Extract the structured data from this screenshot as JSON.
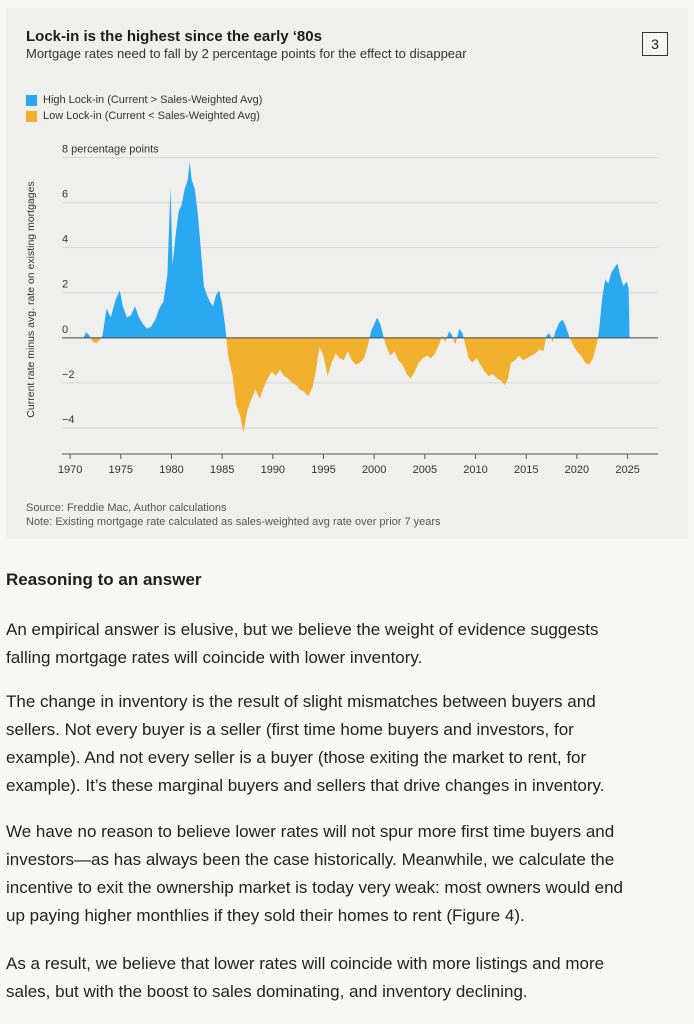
{
  "figure": {
    "title": "Lock-in is the highest since the early ‘80s",
    "subtitle": "Mortgage rates need to fall by 2 percentage points for the effect to disappear",
    "number": "3",
    "legend": [
      {
        "label": "High Lock-in (Current > Sales-Weighted Avg)",
        "color": "#2aa8f0"
      },
      {
        "label": "Low Lock-in (Current < Sales-Weighted Avg)",
        "color": "#f1b12e"
      }
    ],
    "source": "Source: Freddie Mac, Author calculations",
    "note": "Note: Existing mortgage rate calculated as sales-weighted avg rate over prior 7 years"
  },
  "chart_data": {
    "type": "area",
    "ylabel": "Current rate minus avg. rate on existing mortgages",
    "ylim": [
      -4.8,
      8.2
    ],
    "xlim": [
      1969.2,
      2028
    ],
    "y_ticks": [
      {
        "v": 8,
        "label": "8 percentage points"
      },
      {
        "v": 6,
        "label": "6"
      },
      {
        "v": 4,
        "label": "4"
      },
      {
        "v": 2,
        "label": "2"
      },
      {
        "v": 0,
        "label": "0"
      },
      {
        "v": -2,
        "label": "−2"
      },
      {
        "v": -4,
        "label": "−4"
      }
    ],
    "x_ticks": [
      1970,
      1975,
      1980,
      1985,
      1990,
      1995,
      2000,
      2005,
      2010,
      2015,
      2020,
      2025
    ],
    "colors": {
      "positive": "#2aa8f0",
      "negative": "#f1b12e"
    },
    "series": [
      {
        "values": [
          [
            1971.3,
            0
          ],
          [
            1971.6,
            0.25
          ],
          [
            1971.9,
            0.1
          ],
          [
            1972.2,
            -0.15
          ],
          [
            1972.6,
            -0.25
          ],
          [
            1972.9,
            -0.1
          ],
          [
            1973.2,
            0.1
          ],
          [
            1973.6,
            1.3
          ],
          [
            1974.0,
            0.9
          ],
          [
            1974.5,
            1.7
          ],
          [
            1974.9,
            2.1
          ],
          [
            1975.2,
            1.4
          ],
          [
            1975.6,
            0.9
          ],
          [
            1976.0,
            1.0
          ],
          [
            1976.4,
            1.4
          ],
          [
            1976.8,
            0.9
          ],
          [
            1977.2,
            0.6
          ],
          [
            1977.6,
            0.4
          ],
          [
            1978.0,
            0.5
          ],
          [
            1978.4,
            0.8
          ],
          [
            1978.8,
            1.3
          ],
          [
            1979.2,
            1.6
          ],
          [
            1979.6,
            2.8
          ],
          [
            1979.9,
            6.7
          ],
          [
            1980.1,
            3.2
          ],
          [
            1980.4,
            4.5
          ],
          [
            1980.7,
            5.6
          ],
          [
            1981.0,
            5.9
          ],
          [
            1981.3,
            6.6
          ],
          [
            1981.6,
            7.0
          ],
          [
            1981.8,
            7.8
          ],
          [
            1982.0,
            7.0
          ],
          [
            1982.3,
            6.6
          ],
          [
            1982.6,
            5.5
          ],
          [
            1982.9,
            3.9
          ],
          [
            1983.2,
            2.3
          ],
          [
            1983.5,
            1.9
          ],
          [
            1983.8,
            1.6
          ],
          [
            1984.1,
            1.4
          ],
          [
            1984.4,
            1.9
          ],
          [
            1984.7,
            2.1
          ],
          [
            1985.0,
            1.5
          ],
          [
            1985.3,
            0.5
          ],
          [
            1985.6,
            -0.8
          ],
          [
            1986.0,
            -1.6
          ],
          [
            1986.4,
            -3.0
          ],
          [
            1986.8,
            -3.5
          ],
          [
            1987.1,
            -4.2
          ],
          [
            1987.5,
            -3.2
          ],
          [
            1987.9,
            -2.7
          ],
          [
            1988.3,
            -2.3
          ],
          [
            1988.7,
            -2.7
          ],
          [
            1989.1,
            -2.2
          ],
          [
            1989.5,
            -1.8
          ],
          [
            1989.9,
            -1.5
          ],
          [
            1990.3,
            -1.7
          ],
          [
            1990.7,
            -1.4
          ],
          [
            1991.1,
            -1.7
          ],
          [
            1991.5,
            -1.8
          ],
          [
            1991.9,
            -2.0
          ],
          [
            1992.3,
            -2.1
          ],
          [
            1992.7,
            -2.3
          ],
          [
            1993.1,
            -2.4
          ],
          [
            1993.5,
            -2.6
          ],
          [
            1993.9,
            -2.2
          ],
          [
            1994.2,
            -1.6
          ],
          [
            1994.6,
            -0.4
          ],
          [
            1995.0,
            -0.8
          ],
          [
            1995.4,
            -1.7
          ],
          [
            1995.8,
            -1.1
          ],
          [
            1996.2,
            -0.7
          ],
          [
            1996.6,
            -0.9
          ],
          [
            1997.0,
            -1.0
          ],
          [
            1997.4,
            -0.6
          ],
          [
            1997.8,
            -1.0
          ],
          [
            1998.2,
            -1.2
          ],
          [
            1998.6,
            -1.1
          ],
          [
            1999.0,
            -0.9
          ],
          [
            1999.4,
            -0.3
          ],
          [
            1999.7,
            0.3
          ],
          [
            2000.0,
            0.6
          ],
          [
            2000.3,
            0.9
          ],
          [
            2000.6,
            0.6
          ],
          [
            2000.9,
            0.1
          ],
          [
            2001.2,
            -0.4
          ],
          [
            2001.6,
            -0.8
          ],
          [
            2002.0,
            -0.6
          ],
          [
            2002.4,
            -1.0
          ],
          [
            2002.8,
            -1.2
          ],
          [
            2003.2,
            -1.6
          ],
          [
            2003.6,
            -1.8
          ],
          [
            2004.0,
            -1.5
          ],
          [
            2004.4,
            -1.1
          ],
          [
            2004.8,
            -0.9
          ],
          [
            2005.2,
            -0.8
          ],
          [
            2005.6,
            -0.9
          ],
          [
            2006.0,
            -0.7
          ],
          [
            2006.4,
            -0.3
          ],
          [
            2006.7,
            0.1
          ],
          [
            2007.0,
            -0.2
          ],
          [
            2007.4,
            0.3
          ],
          [
            2007.7,
            0.1
          ],
          [
            2008.0,
            -0.3
          ],
          [
            2008.4,
            0.4
          ],
          [
            2008.7,
            0.2
          ],
          [
            2009.0,
            -0.3
          ],
          [
            2009.3,
            -0.9
          ],
          [
            2009.7,
            -1.1
          ],
          [
            2010.1,
            -0.9
          ],
          [
            2010.5,
            -1.2
          ],
          [
            2010.9,
            -1.5
          ],
          [
            2011.3,
            -1.7
          ],
          [
            2011.7,
            -1.6
          ],
          [
            2012.1,
            -1.8
          ],
          [
            2012.5,
            -1.9
          ],
          [
            2012.9,
            -2.1
          ],
          [
            2013.2,
            -1.8
          ],
          [
            2013.5,
            -1.1
          ],
          [
            2013.9,
            -1.0
          ],
          [
            2014.3,
            -0.8
          ],
          [
            2014.7,
            -1.0
          ],
          [
            2015.1,
            -0.9
          ],
          [
            2015.5,
            -0.8
          ],
          [
            2015.9,
            -0.7
          ],
          [
            2016.3,
            -0.5
          ],
          [
            2016.7,
            -0.6
          ],
          [
            2017.0,
            0.1
          ],
          [
            2017.3,
            0.2
          ],
          [
            2017.6,
            -0.2
          ],
          [
            2017.9,
            0.3
          ],
          [
            2018.3,
            0.7
          ],
          [
            2018.6,
            0.8
          ],
          [
            2018.9,
            0.5
          ],
          [
            2019.2,
            0.1
          ],
          [
            2019.6,
            -0.3
          ],
          [
            2020.0,
            -0.6
          ],
          [
            2020.4,
            -0.8
          ],
          [
            2020.8,
            -1.1
          ],
          [
            2021.2,
            -1.2
          ],
          [
            2021.6,
            -0.9
          ],
          [
            2022.0,
            -0.2
          ],
          [
            2022.2,
            0.4
          ],
          [
            2022.5,
            1.8
          ],
          [
            2022.8,
            2.6
          ],
          [
            2023.1,
            2.4
          ],
          [
            2023.4,
            2.9
          ],
          [
            2023.7,
            3.1
          ],
          [
            2024.0,
            3.3
          ],
          [
            2024.3,
            2.7
          ],
          [
            2024.6,
            2.3
          ],
          [
            2024.9,
            2.5
          ],
          [
            2025.1,
            2.2
          ],
          [
            2025.2,
            0
          ]
        ]
      }
    ]
  },
  "article": {
    "heading": "Reasoning to an answer",
    "paragraphs": [
      [
        "An empirical answer is elusive, but we believe the weight of evidence suggests",
        "falling mortgage rates will coincide with lower inventory."
      ],
      [
        "The change in inventory is the result of slight mismatches between buyers and",
        "sellers. Not every buyer is a seller (first time home buyers and investors, for",
        "example). And not every seller is a buyer (those exiting the market to rent, for",
        "example). It’s these marginal buyers and sellers that drive changes in inventory."
      ],
      [
        "We have no reason to believe lower rates will not spur more first time buyers and",
        "investors—as has always been the case historically. Meanwhile, we calculate the",
        "incentive to exit the ownership market is today very weak: most owners would end",
        "up paying higher monthlies if they sold their homes to rent (Figure 4)."
      ],
      [
        "As a result, we believe that lower rates will coincide with more listings and more",
        "sales, but with the boost to sales dominating, and inventory declining."
      ]
    ]
  }
}
